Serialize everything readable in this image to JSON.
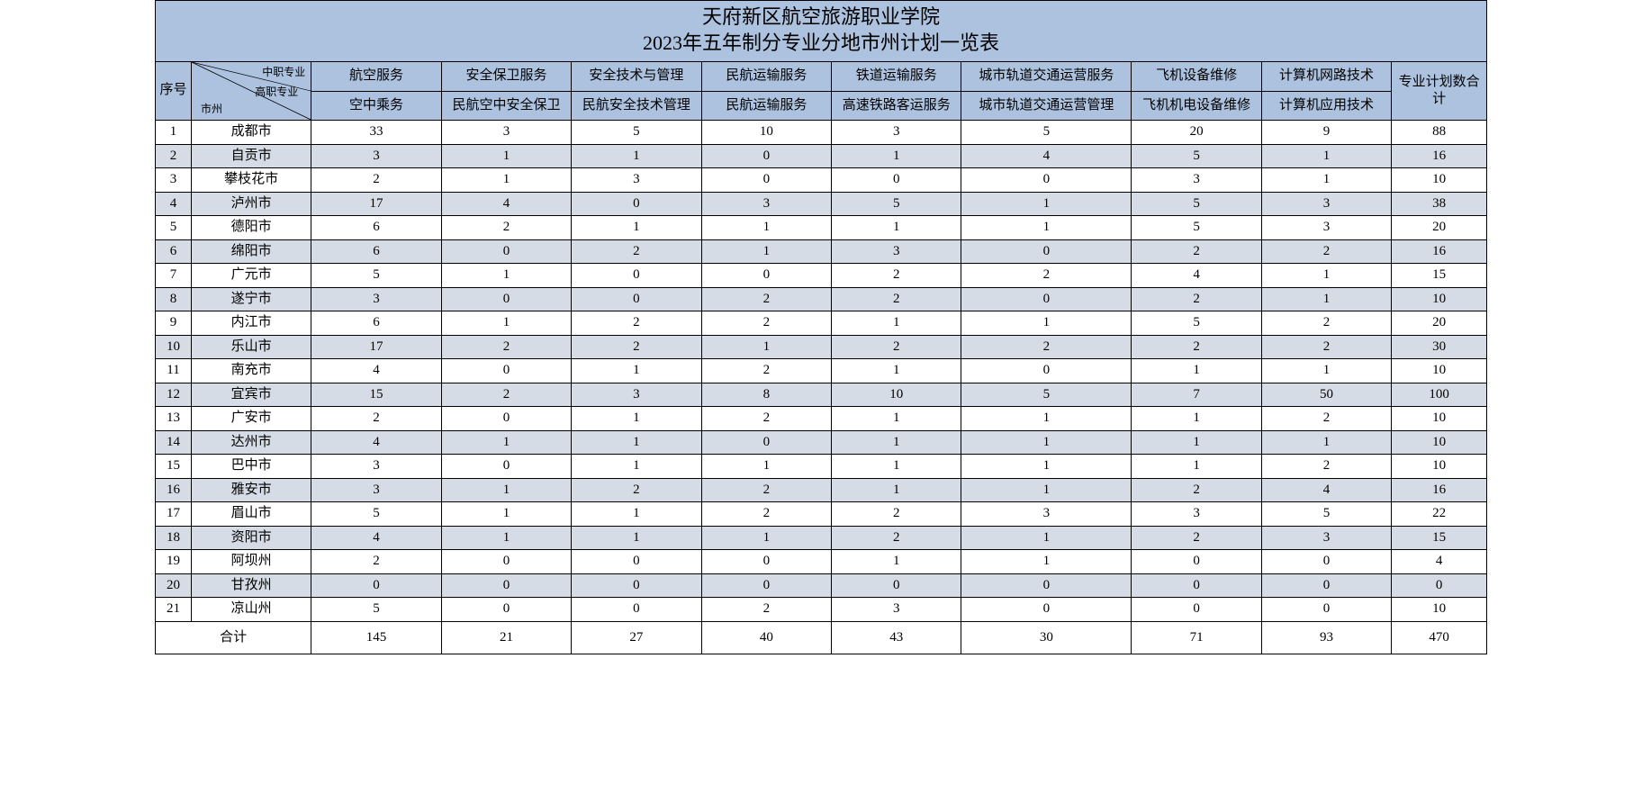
{
  "title": "天府新区航空旅游职业学院",
  "subtitle": "2023年五年制分专业分地市州计划一览表",
  "diag": {
    "topRight": "中职专业",
    "midRight": "高职专业",
    "botLeft": "市州"
  },
  "seqHeader": "序号",
  "totalColHeader": "专业计划数合计",
  "totalRowLabel": "合计",
  "majorsTop": [
    "航空服务",
    "安全保卫服务",
    "安全技术与管理",
    "民航运输服务",
    "铁道运输服务",
    "城市轨道交通运营服务",
    "飞机设备维修",
    "计算机网路技术"
  ],
  "majorsBot": [
    "空中乘务",
    "民航空中安全保卫",
    "民航安全技术管理",
    "民航运输服务",
    "高速铁路客运服务",
    "城市轨道交通运营管理",
    "飞机机电设备维修",
    "计算机应用技术"
  ],
  "rows": [
    {
      "seq": "1",
      "city": "成都市",
      "cells": [
        "33",
        "3",
        "5",
        "10",
        "3",
        "5",
        "20",
        "9"
      ],
      "total": "88"
    },
    {
      "seq": "2",
      "city": "自贡市",
      "cells": [
        "3",
        "1",
        "1",
        "0",
        "1",
        "4",
        "5",
        "1"
      ],
      "total": "16"
    },
    {
      "seq": "3",
      "city": "攀枝花市",
      "cells": [
        "2",
        "1",
        "3",
        "0",
        "0",
        "0",
        "3",
        "1"
      ],
      "total": "10"
    },
    {
      "seq": "4",
      "city": "泸州市",
      "cells": [
        "17",
        "4",
        "0",
        "3",
        "5",
        "1",
        "5",
        "3"
      ],
      "total": "38"
    },
    {
      "seq": "5",
      "city": "德阳市",
      "cells": [
        "6",
        "2",
        "1",
        "1",
        "1",
        "1",
        "5",
        "3"
      ],
      "total": "20"
    },
    {
      "seq": "6",
      "city": "绵阳市",
      "cells": [
        "6",
        "0",
        "2",
        "1",
        "3",
        "0",
        "2",
        "2"
      ],
      "total": "16"
    },
    {
      "seq": "7",
      "city": "广元市",
      "cells": [
        "5",
        "1",
        "0",
        "0",
        "2",
        "2",
        "4",
        "1"
      ],
      "total": "15"
    },
    {
      "seq": "8",
      "city": "遂宁市",
      "cells": [
        "3",
        "0",
        "0",
        "2",
        "2",
        "0",
        "2",
        "1"
      ],
      "total": "10"
    },
    {
      "seq": "9",
      "city": "内江市",
      "cells": [
        "6",
        "1",
        "2",
        "2",
        "1",
        "1",
        "5",
        "2"
      ],
      "total": "20"
    },
    {
      "seq": "10",
      "city": "乐山市",
      "cells": [
        "17",
        "2",
        "2",
        "1",
        "2",
        "2",
        "2",
        "2"
      ],
      "total": "30"
    },
    {
      "seq": "11",
      "city": "南充市",
      "cells": [
        "4",
        "0",
        "1",
        "2",
        "1",
        "0",
        "1",
        "1"
      ],
      "total": "10"
    },
    {
      "seq": "12",
      "city": "宜宾市",
      "cells": [
        "15",
        "2",
        "3",
        "8",
        "10",
        "5",
        "7",
        "50"
      ],
      "total": "100"
    },
    {
      "seq": "13",
      "city": "广安市",
      "cells": [
        "2",
        "0",
        "1",
        "2",
        "1",
        "1",
        "1",
        "2"
      ],
      "total": "10"
    },
    {
      "seq": "14",
      "city": "达州市",
      "cells": [
        "4",
        "1",
        "1",
        "0",
        "1",
        "1",
        "1",
        "1"
      ],
      "total": "10"
    },
    {
      "seq": "15",
      "city": "巴中市",
      "cells": [
        "3",
        "0",
        "1",
        "1",
        "1",
        "1",
        "1",
        "2"
      ],
      "total": "10"
    },
    {
      "seq": "16",
      "city": "雅安市",
      "cells": [
        "3",
        "1",
        "2",
        "2",
        "1",
        "1",
        "2",
        "4"
      ],
      "total": "16"
    },
    {
      "seq": "17",
      "city": "眉山市",
      "cells": [
        "5",
        "1",
        "1",
        "2",
        "2",
        "3",
        "3",
        "5"
      ],
      "total": "22"
    },
    {
      "seq": "18",
      "city": "资阳市",
      "cells": [
        "4",
        "1",
        "1",
        "1",
        "2",
        "1",
        "2",
        "3"
      ],
      "total": "15"
    },
    {
      "seq": "19",
      "city": "阿坝州",
      "cells": [
        "2",
        "0",
        "0",
        "0",
        "1",
        "1",
        "0",
        "0"
      ],
      "total": "4"
    },
    {
      "seq": "20",
      "city": "甘孜州",
      "cells": [
        "0",
        "0",
        "0",
        "0",
        "0",
        "0",
        "0",
        "0"
      ],
      "total": "0"
    },
    {
      "seq": "21",
      "city": "凉山州",
      "cells": [
        "5",
        "0",
        "0",
        "2",
        "3",
        "0",
        "0",
        "0"
      ],
      "total": "10"
    }
  ],
  "totals": [
    "145",
    "21",
    "27",
    "40",
    "43",
    "30",
    "71",
    "93"
  ],
  "grandTotal": "470",
  "style": {
    "headerBg": "#acc2de",
    "stripeBg": "#d6dce5",
    "borderColor": "#000000",
    "titleFontSize": 22,
    "cellFontSize": 15
  }
}
